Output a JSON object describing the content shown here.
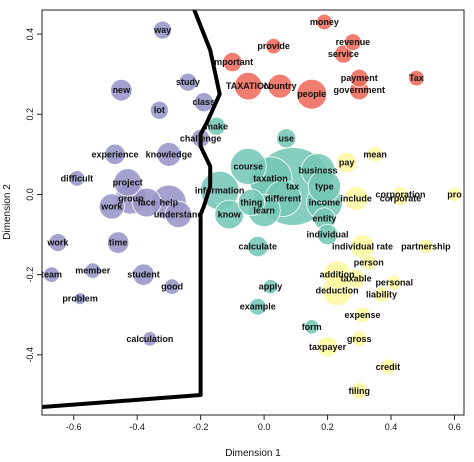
{
  "chart_data": {
    "type": "scatter",
    "xlabel": "Dimension 1",
    "ylabel": "Dimension 2",
    "xlim": [
      -0.7,
      0.63
    ],
    "ylim": [
      -0.55,
      0.46
    ],
    "x_ticks": [
      "-0.6",
      "-0.4",
      "-0.2",
      "0.0",
      "0.2",
      "0.4",
      "0.6"
    ],
    "y_ticks": [
      "-0.4",
      "-0.2",
      "0.0",
      "0.2",
      "0.4"
    ],
    "grid": false,
    "legend": "none",
    "colors": {
      "purple": "#9a95c8",
      "red": "#ef6a5c",
      "teal": "#75c7b6",
      "yellow": "#fdf8a2"
    },
    "boundary_line": [
      [
        -0.22,
        0.46
      ],
      [
        -0.17,
        0.36
      ],
      [
        -0.14,
        0.25
      ],
      [
        -0.18,
        0.18
      ],
      [
        -0.2,
        0.15
      ],
      [
        -0.2,
        0.12
      ],
      [
        -0.17,
        0.07
      ],
      [
        -0.17,
        0.02
      ],
      [
        -0.19,
        -0.03
      ],
      [
        -0.2,
        -0.05
      ],
      [
        -0.2,
        -0.5
      ],
      [
        -0.7,
        -0.53
      ]
    ],
    "points": [
      {
        "label": "way",
        "x": -0.32,
        "y": 0.41,
        "size": 1.5,
        "group": "purple"
      },
      {
        "label": "new",
        "x": -0.45,
        "y": 0.26,
        "size": 1.8,
        "group": "purple"
      },
      {
        "label": "lot",
        "x": -0.33,
        "y": 0.21,
        "size": 1.5,
        "group": "purple"
      },
      {
        "label": "study",
        "x": -0.24,
        "y": 0.28,
        "size": 1.5,
        "group": "purple"
      },
      {
        "label": "class",
        "x": -0.19,
        "y": 0.23,
        "size": 1.6,
        "group": "purple"
      },
      {
        "label": "challenge",
        "x": -0.2,
        "y": 0.14,
        "size": 1.5,
        "group": "purple"
      },
      {
        "label": "experience",
        "x": -0.47,
        "y": 0.1,
        "size": 1.7,
        "group": "purple"
      },
      {
        "label": "knowledge",
        "x": -0.3,
        "y": 0.1,
        "size": 2.0,
        "group": "purple"
      },
      {
        "label": "difficult",
        "x": -0.59,
        "y": 0.04,
        "size": 1.3,
        "group": "purple"
      },
      {
        "label": "project",
        "x": -0.43,
        "y": 0.03,
        "size": 2.3,
        "group": "purple"
      },
      {
        "label": "group",
        "x": -0.42,
        "y": -0.01,
        "size": 2.6,
        "group": "purple"
      },
      {
        "label": "face",
        "x": -0.37,
        "y": -0.02,
        "size": 2.4,
        "group": "purple"
      },
      {
        "label": "help",
        "x": -0.3,
        "y": -0.02,
        "size": 2.9,
        "group": "purple"
      },
      {
        "label": "understand",
        "x": -0.27,
        "y": -0.05,
        "size": 2.2,
        "group": "purple"
      },
      {
        "label": "work",
        "x": -0.48,
        "y": -0.03,
        "size": 2.1,
        "group": "purple"
      },
      {
        "label": "work",
        "x": -0.65,
        "y": -0.12,
        "size": 1.5,
        "group": "purple"
      },
      {
        "label": "time",
        "x": -0.46,
        "y": -0.12,
        "size": 1.8,
        "group": "purple"
      },
      {
        "label": "team",
        "x": -0.67,
        "y": -0.2,
        "size": 1.3,
        "group": "purple"
      },
      {
        "label": "member",
        "x": -0.54,
        "y": -0.19,
        "size": 1.3,
        "group": "purple"
      },
      {
        "label": "student",
        "x": -0.38,
        "y": -0.2,
        "size": 1.8,
        "group": "purple"
      },
      {
        "label": "problem",
        "x": -0.58,
        "y": -0.26,
        "size": 1.0,
        "group": "purple"
      },
      {
        "label": "good",
        "x": -0.29,
        "y": -0.23,
        "size": 1.3,
        "group": "purple"
      },
      {
        "label": "calculation",
        "x": -0.36,
        "y": -0.36,
        "size": 1.2,
        "group": "purple"
      },
      {
        "label": "money",
        "x": 0.19,
        "y": 0.43,
        "size": 1.3,
        "group": "red"
      },
      {
        "label": "provide",
        "x": 0.03,
        "y": 0.37,
        "size": 1.3,
        "group": "red"
      },
      {
        "label": "revenue",
        "x": 0.28,
        "y": 0.38,
        "size": 1.4,
        "group": "red"
      },
      {
        "label": "important",
        "x": -0.1,
        "y": 0.33,
        "size": 1.6,
        "group": "red"
      },
      {
        "label": "service",
        "x": 0.25,
        "y": 0.35,
        "size": 1.5,
        "group": "red"
      },
      {
        "label": "TAXATION",
        "x": -0.05,
        "y": 0.27,
        "size": 2.3,
        "group": "red"
      },
      {
        "label": "country",
        "x": 0.05,
        "y": 0.27,
        "size": 2.0,
        "group": "red"
      },
      {
        "label": "people",
        "x": 0.15,
        "y": 0.25,
        "size": 2.5,
        "group": "red"
      },
      {
        "label": "payment",
        "x": 0.3,
        "y": 0.29,
        "size": 1.5,
        "group": "red"
      },
      {
        "label": "government",
        "x": 0.3,
        "y": 0.26,
        "size": 1.6,
        "group": "red"
      },
      {
        "label": "Tax",
        "x": 0.48,
        "y": 0.29,
        "size": 1.3,
        "group": "red"
      },
      {
        "label": "make",
        "x": -0.15,
        "y": 0.17,
        "size": 1.5,
        "group": "teal"
      },
      {
        "label": "use",
        "x": 0.07,
        "y": 0.14,
        "size": 1.6,
        "group": "teal"
      },
      {
        "label": "course",
        "x": -0.05,
        "y": 0.07,
        "size": 3.0,
        "group": "teal"
      },
      {
        "label": "business",
        "x": 0.17,
        "y": 0.06,
        "size": 2.8,
        "group": "teal"
      },
      {
        "label": "taxation",
        "x": 0.02,
        "y": 0.04,
        "size": 3.6,
        "group": "teal"
      },
      {
        "label": "tax",
        "x": 0.09,
        "y": 0.02,
        "size": 6.5,
        "group": "teal"
      },
      {
        "label": "type",
        "x": 0.19,
        "y": 0.02,
        "size": 2.7,
        "group": "teal"
      },
      {
        "label": "information",
        "x": -0.14,
        "y": 0.01,
        "size": 3.2,
        "group": "teal"
      },
      {
        "label": "different",
        "x": 0.06,
        "y": -0.01,
        "size": 3.0,
        "group": "teal"
      },
      {
        "label": "thing",
        "x": -0.04,
        "y": -0.02,
        "size": 2.2,
        "group": "teal"
      },
      {
        "label": "learn",
        "x": 0.0,
        "y": -0.04,
        "size": 2.7,
        "group": "teal"
      },
      {
        "label": "know",
        "x": -0.11,
        "y": -0.05,
        "size": 2.4,
        "group": "teal"
      },
      {
        "label": "income",
        "x": 0.19,
        "y": -0.02,
        "size": 3.0,
        "group": "teal"
      },
      {
        "label": "entity",
        "x": 0.19,
        "y": -0.06,
        "size": 1.8,
        "group": "teal"
      },
      {
        "label": "individual",
        "x": 0.2,
        "y": -0.1,
        "size": 1.7,
        "group": "teal"
      },
      {
        "label": "calculate",
        "x": -0.02,
        "y": -0.13,
        "size": 1.7,
        "group": "teal"
      },
      {
        "label": "apply",
        "x": 0.02,
        "y": -0.23,
        "size": 1.2,
        "group": "teal"
      },
      {
        "label": "example",
        "x": -0.02,
        "y": -0.28,
        "size": 1.4,
        "group": "teal"
      },
      {
        "label": "form",
        "x": 0.15,
        "y": -0.33,
        "size": 1.2,
        "group": "teal"
      },
      {
        "label": "pay",
        "x": 0.26,
        "y": 0.08,
        "size": 1.7,
        "group": "yellow"
      },
      {
        "label": "mean",
        "x": 0.35,
        "y": 0.1,
        "size": 1.3,
        "group": "yellow"
      },
      {
        "label": "include",
        "x": 0.29,
        "y": -0.01,
        "size": 2.0,
        "group": "yellow"
      },
      {
        "label": "corporation",
        "x": 0.43,
        "y": 0.0,
        "size": 1.3,
        "group": "yellow"
      },
      {
        "label": "corporate",
        "x": 0.43,
        "y": -0.01,
        "size": 1.2,
        "group": "yellow"
      },
      {
        "label": "pro",
        "x": 0.6,
        "y": 0.0,
        "size": 1.2,
        "group": "yellow"
      },
      {
        "label": "individual rate",
        "x": 0.31,
        "y": -0.13,
        "size": 2.0,
        "group": "yellow"
      },
      {
        "label": "partnership",
        "x": 0.51,
        "y": -0.13,
        "size": 1.2,
        "group": "yellow"
      },
      {
        "label": "person",
        "x": 0.33,
        "y": -0.17,
        "size": 1.3,
        "group": "yellow"
      },
      {
        "label": "addition",
        "x": 0.23,
        "y": -0.2,
        "size": 2.3,
        "group": "yellow"
      },
      {
        "label": "taxable",
        "x": 0.29,
        "y": -0.21,
        "size": 1.6,
        "group": "yellow"
      },
      {
        "label": "deduction",
        "x": 0.23,
        "y": -0.24,
        "size": 2.5,
        "group": "yellow"
      },
      {
        "label": "personal",
        "x": 0.41,
        "y": -0.22,
        "size": 1.2,
        "group": "yellow"
      },
      {
        "label": "liability",
        "x": 0.37,
        "y": -0.25,
        "size": 1.3,
        "group": "yellow"
      },
      {
        "label": "expense",
        "x": 0.31,
        "y": -0.3,
        "size": 1.3,
        "group": "yellow"
      },
      {
        "label": "gross",
        "x": 0.3,
        "y": -0.36,
        "size": 1.3,
        "group": "yellow"
      },
      {
        "label": "taxpayer",
        "x": 0.2,
        "y": -0.38,
        "size": 1.7,
        "group": "yellow"
      },
      {
        "label": "credit",
        "x": 0.39,
        "y": -0.43,
        "size": 1.3,
        "group": "yellow"
      },
      {
        "label": "filing",
        "x": 0.3,
        "y": -0.49,
        "size": 1.4,
        "group": "yellow"
      }
    ]
  }
}
